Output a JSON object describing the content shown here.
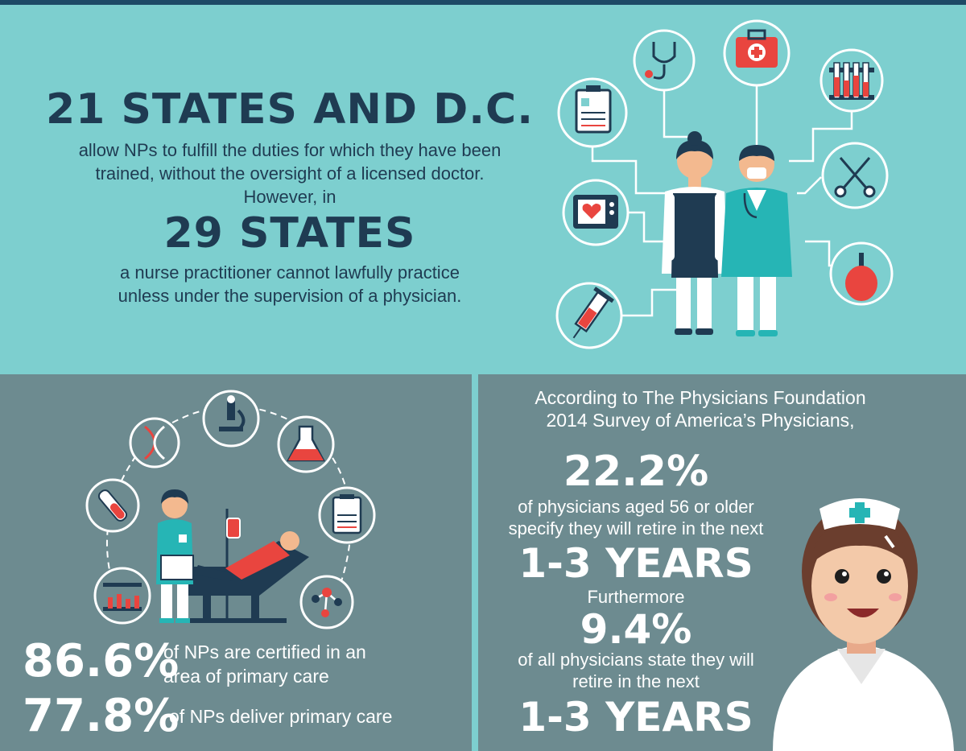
{
  "top": {
    "headline1": "21 STATES AND D.C.",
    "line1": "allow NPs to fulfill the duties for which they have been",
    "line2": "trained, without the oversight of a licensed doctor.",
    "line3": "However, in",
    "headline2": "29 STATES",
    "line4": "a nurse practitioner cannot lawfully practice",
    "line5": "unless under the supervision of a physician."
  },
  "left": {
    "stat1_value": "86.6%",
    "stat1_text_a": "of NPs are certified in an",
    "stat1_text_b": "area of primary care",
    "stat2_value": "77.8%",
    "stat2_text": "of NPs deliver primary care"
  },
  "right": {
    "intro_a": "According to The Physicians Foundation",
    "intro_b": "2014 Survey of America’s Physicians,",
    "stat1_value": "22.2%",
    "stat1_text_a": "of physicians aged 56 or older",
    "stat1_text_b": "specify they will retire in the next",
    "stat1_years": "1-3 YEARS",
    "connector": "Furthermore",
    "stat2_value": "9.4%",
    "stat2_text_a": "of all physicians state they will",
    "stat2_text_b": "retire in the next",
    "stat2_years": "1-3 YEARS"
  },
  "colors": {
    "teal": "#7dcfcf",
    "slate": "#6d8b90",
    "navy": "#1f3b52",
    "red": "#e9453f",
    "white": "#ffffff"
  },
  "icons": {
    "top": [
      "clipboard-icon",
      "stethoscope-icon",
      "first-aid-kit-icon",
      "test-tubes-icon",
      "scissors-icon",
      "heart-monitor-icon",
      "bulb-syringe-icon",
      "syringe-icon"
    ],
    "bottom": [
      "dna-icon",
      "microscope-icon",
      "flask-icon",
      "blood-vial-icon",
      "clipboard-icon",
      "test-tubes-icon",
      "molecule-icon"
    ]
  }
}
